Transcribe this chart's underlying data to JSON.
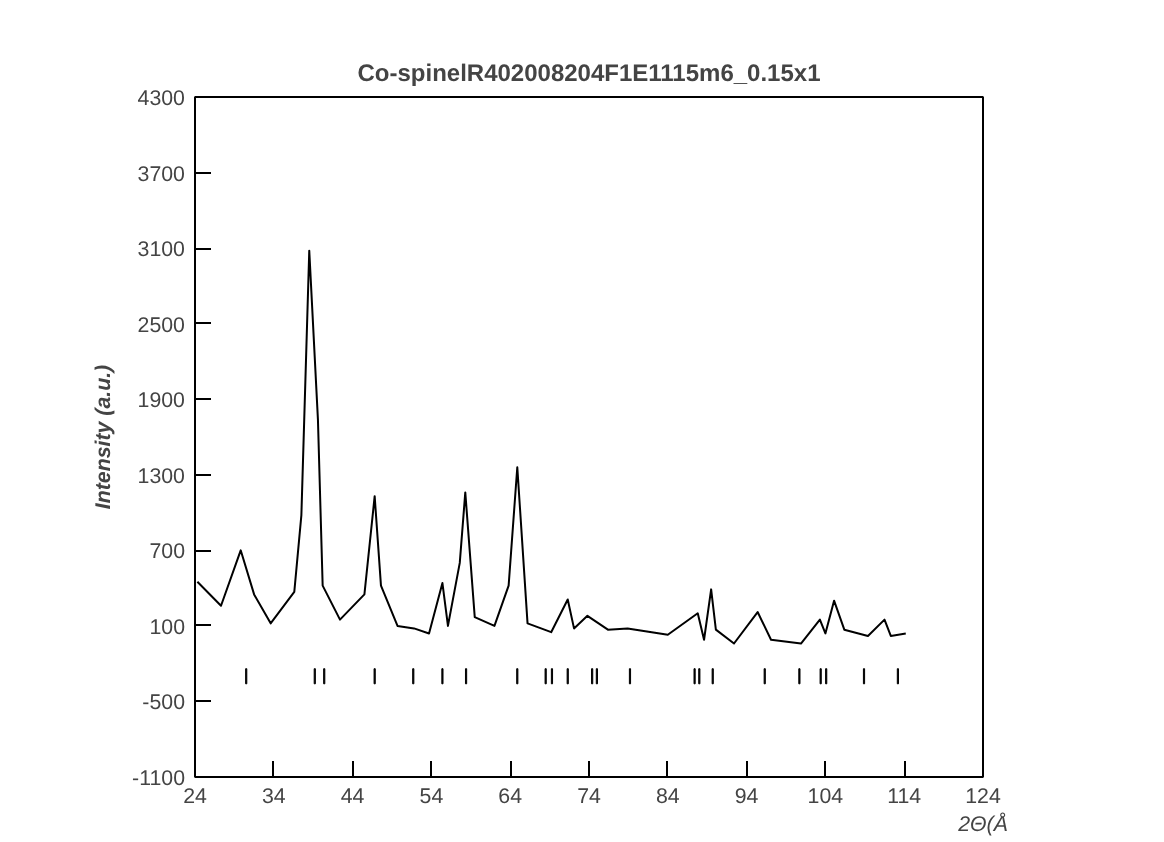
{
  "chart_data": {
    "type": "line",
    "title": "Co-spinelR402008204F1E1115m6_0.15x1",
    "xlabel": "2Θ(Å",
    "ylabel": "Intensity (a.u.)",
    "xlim": [
      24,
      124
    ],
    "xticks": [
      24,
      34,
      44,
      54,
      64,
      74,
      84,
      94,
      104,
      114,
      124
    ],
    "ylim": [
      -1100,
      4300
    ],
    "yticks": [
      -1100,
      -500,
      100,
      700,
      1300,
      1900,
      2500,
      3100,
      3700,
      4300
    ],
    "grid": false,
    "series": [
      {
        "color": "#000000",
        "line_style": "solid",
        "x": [
          24.3,
          27.3,
          29.8,
          31.5,
          33.6,
          36.6,
          37.5,
          38.5,
          39.6,
          40.2,
          42.4,
          45.5,
          46.8,
          47.6,
          49.7,
          51.8,
          53.7,
          55.4,
          56.1,
          57.6,
          58.3,
          59.5,
          62.0,
          63.8,
          64.9,
          66.2,
          69.2,
          71.3,
          72.1,
          73.8,
          76.4,
          78.9,
          84.0,
          87.8,
          88.6,
          89.5,
          90.1,
          92.4,
          95.4,
          97.1,
          100.9,
          103.3,
          104.0,
          105.1,
          106.4,
          109.4,
          111.5,
          112.3,
          114.2
        ],
        "values": [
          450,
          260,
          700,
          350,
          120,
          370,
          980,
          3080,
          1740,
          420,
          150,
          350,
          1130,
          420,
          100,
          80,
          40,
          440,
          100,
          600,
          1160,
          170,
          100,
          420,
          1360,
          120,
          50,
          310,
          80,
          180,
          70,
          80,
          30,
          200,
          -10,
          390,
          70,
          -40,
          210,
          -10,
          -40,
          150,
          40,
          300,
          70,
          20,
          150,
          20,
          40
        ]
      },
      {
        "type": "bar",
        "color": "#000000",
        "x": [
          30.5,
          39.2,
          40.4,
          46.8,
          51.7,
          55.4,
          58.4,
          64.9,
          68.5,
          69.3,
          71.3,
          74.4,
          75.0,
          79.2,
          87.4,
          88.0,
          89.7,
          96.3,
          100.7,
          103.4,
          104.1,
          108.9,
          113.2
        ],
        "base": [
          -360,
          -360,
          -360,
          -360,
          -360,
          -360,
          -360,
          -360,
          -360,
          -360,
          -360,
          -360,
          -360,
          -360,
          -360,
          -360,
          -360,
          -360,
          -360,
          -360,
          -360,
          -360,
          -360
        ],
        "values": [
          120,
          120,
          120,
          120,
          120,
          120,
          120,
          120,
          120,
          120,
          120,
          120,
          120,
          120,
          120,
          120,
          120,
          120,
          120,
          120,
          120,
          120,
          120
        ]
      }
    ]
  }
}
